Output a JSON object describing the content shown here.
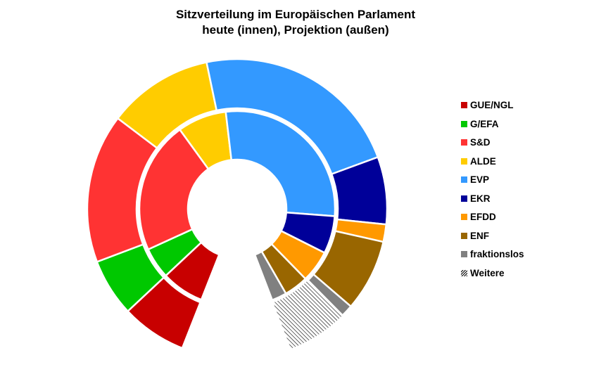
{
  "chart_data": {
    "type": "donut",
    "title": "Sitzverteilung im Europäischen Parlament",
    "subtitle": "heute (innen), Projektion (außen)",
    "categories": [
      "GUE/NGL",
      "G/EFA",
      "S&D",
      "ALDE",
      "EVP",
      "EKR",
      "EFDD",
      "ENF",
      "fraktionslos",
      "Weitere"
    ],
    "colors": [
      "#c80000",
      "#00c800",
      "#ff3333",
      "#ffcc00",
      "#3399ff",
      "#000099",
      "#ff9900",
      "#996600",
      "#808080",
      "hatched"
    ],
    "series": [
      {
        "ring": "inner",
        "values": [
          60,
          44,
          186,
          69,
          239,
          53,
          45,
          34,
          21,
          0
        ]
      },
      {
        "ring": "outer",
        "values": [
          60,
          53,
          137,
          97,
          193,
          62,
          16,
          66,
          11,
          56
        ]
      }
    ],
    "legend_position": "right"
  }
}
